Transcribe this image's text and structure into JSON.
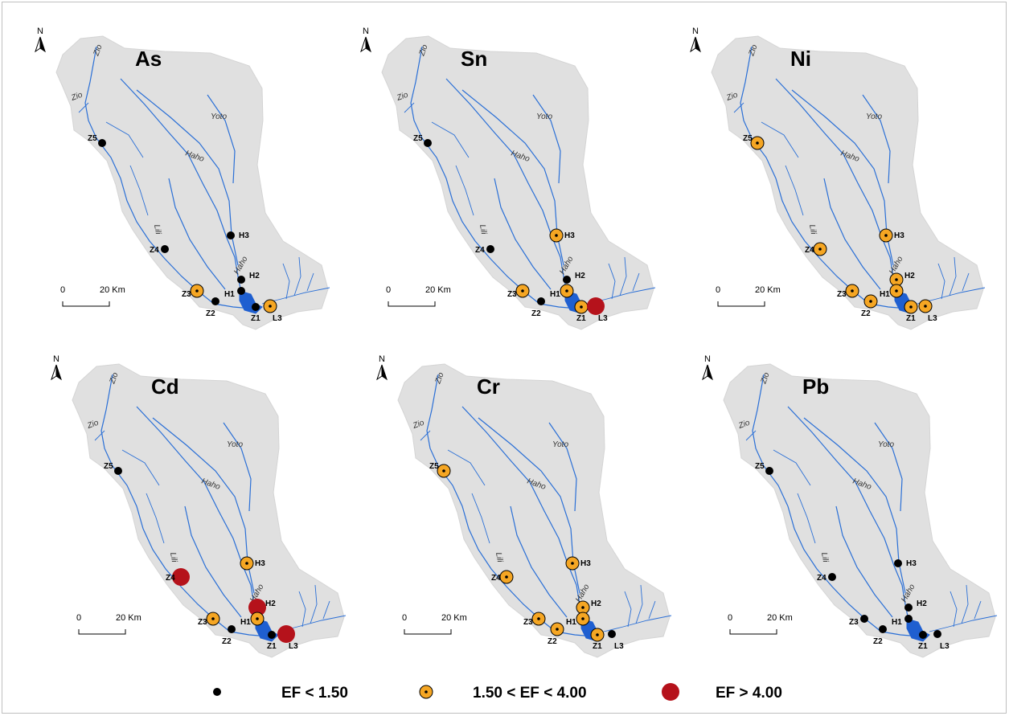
{
  "legend": [
    {
      "class": "low",
      "label": "EF < 1.50"
    },
    {
      "class": "mid",
      "label": "1.50 < EF < 4.00"
    },
    {
      "class": "high",
      "label": "EF > 4.00"
    }
  ],
  "colors": {
    "basin": "#e0e0e0",
    "river": "#2a6fd6",
    "lake": "#1f5fd0",
    "low": "#000000",
    "mid": "#f5a623",
    "high": "#b5121b"
  },
  "north_label": "N",
  "scale": {
    "zero": "0",
    "distance": "20 Km"
  },
  "rivers": [
    "Zio",
    "Zio",
    "Yoto",
    "Haho",
    "Lili",
    "Haho"
  ],
  "panels": [
    {
      "element": "As",
      "sites": {
        "Z5": "low",
        "Z4": "low",
        "Z3": "mid",
        "Z2": "low",
        "Z1": "low",
        "H3": "low",
        "H2": "low",
        "H1": "low",
        "L3": "mid"
      }
    },
    {
      "element": "Sn",
      "sites": {
        "Z5": "low",
        "Z4": "low",
        "Z3": "mid",
        "Z2": "low",
        "Z1": "mid",
        "H3": "mid",
        "H2": "low",
        "H1": "mid",
        "L3": "high"
      }
    },
    {
      "element": "Ni",
      "sites": {
        "Z5": "mid",
        "Z4": "mid",
        "Z3": "mid",
        "Z2": "mid",
        "Z1": "mid",
        "H3": "mid",
        "H2": "mid",
        "H1": "mid",
        "L3": "mid"
      }
    },
    {
      "element": "Cd",
      "sites": {
        "Z5": "low",
        "Z4": "high",
        "Z3": "mid",
        "Z2": "low",
        "Z1": "low",
        "H3": "mid",
        "H2": "high",
        "H1": "mid",
        "L3": "high"
      }
    },
    {
      "element": "Cr",
      "sites": {
        "Z5": "mid",
        "Z4": "mid",
        "Z3": "mid",
        "Z2": "mid",
        "Z1": "mid",
        "H3": "mid",
        "H2": "mid",
        "H1": "mid",
        "L3": "low"
      }
    },
    {
      "element": "Pb",
      "sites": {
        "Z5": "low",
        "Z4": "low",
        "Z3": "low",
        "Z2": "low",
        "Z1": "low",
        "H3": "low",
        "H2": "low",
        "H1": "low",
        "L3": "low"
      }
    }
  ]
}
